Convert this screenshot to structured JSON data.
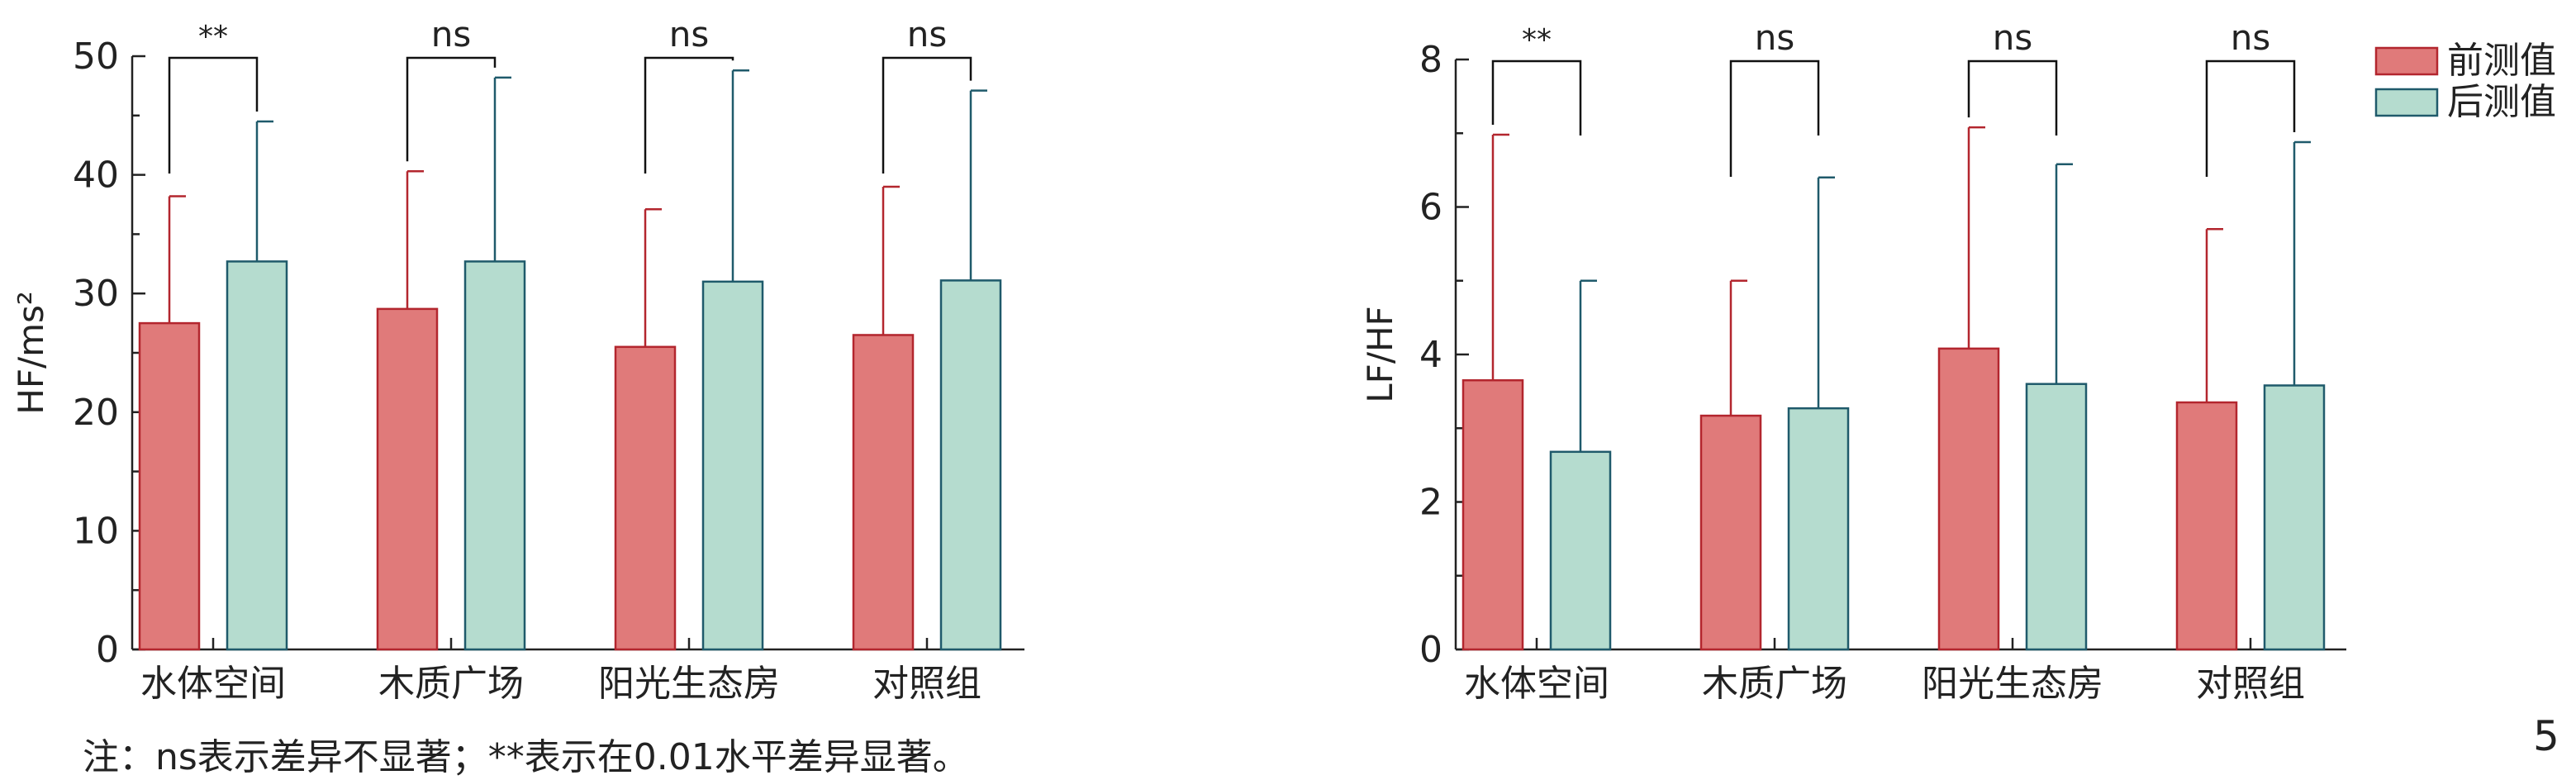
{
  "chart_data": [
    {
      "type": "bar",
      "categories": [
        "水体空间",
        "木质广场",
        "阳光生态房",
        "对照组"
      ],
      "ylabel": "HF/ms²",
      "ylim": [
        0,
        50
      ],
      "yticks": [
        "0",
        "10",
        "20",
        "30",
        "40",
        "50"
      ],
      "series": [
        {
          "name": "前测值",
          "values": [
            27.5,
            28.7,
            25.5,
            26.5
          ],
          "error": [
            10.7,
            11.6,
            11.6,
            12.5
          ]
        },
        {
          "name": "后测值",
          "values": [
            32.7,
            32.7,
            31.0,
            31.1
          ],
          "error": [
            11.8,
            15.5,
            17.8,
            16.0
          ]
        }
      ],
      "significance": [
        "**",
        "ns",
        "ns",
        "ns"
      ],
      "grid": false
    },
    {
      "type": "bar",
      "categories": [
        "水体空间",
        "木质广场",
        "阳光生态房",
        "对照组"
      ],
      "ylabel": "LF/HF",
      "ylim": [
        0,
        8
      ],
      "yticks": [
        "0",
        "2",
        "4",
        "6",
        "8"
      ],
      "series": [
        {
          "name": "前测值",
          "values": [
            3.65,
            3.17,
            4.08,
            3.35
          ],
          "error": [
            3.33,
            1.83,
            3.0,
            2.35
          ]
        },
        {
          "name": "后测值",
          "values": [
            2.68,
            3.27,
            3.6,
            3.58
          ],
          "error": [
            2.32,
            3.13,
            2.98,
            3.3
          ]
        }
      ],
      "significance": [
        "**",
        "ns",
        "ns",
        "ns"
      ],
      "grid": false,
      "legend_position": "top-right"
    }
  ],
  "legend": [
    {
      "label": "前测值",
      "color": "#e07a7a",
      "edge": "#b3262e"
    },
    {
      "label": "后测值",
      "color": "#b5dccf",
      "edge": "#1f5a6b"
    }
  ],
  "colors": {
    "pre_fill": "#e07a7a",
    "pre_edge": "#b3262e",
    "post_fill": "#b5dccf",
    "post_edge": "#1f5a6b",
    "axis": "#222222"
  },
  "note": "注：ns表示差异不显著；**表示在0.01水平差异显著。",
  "page_number": "5"
}
